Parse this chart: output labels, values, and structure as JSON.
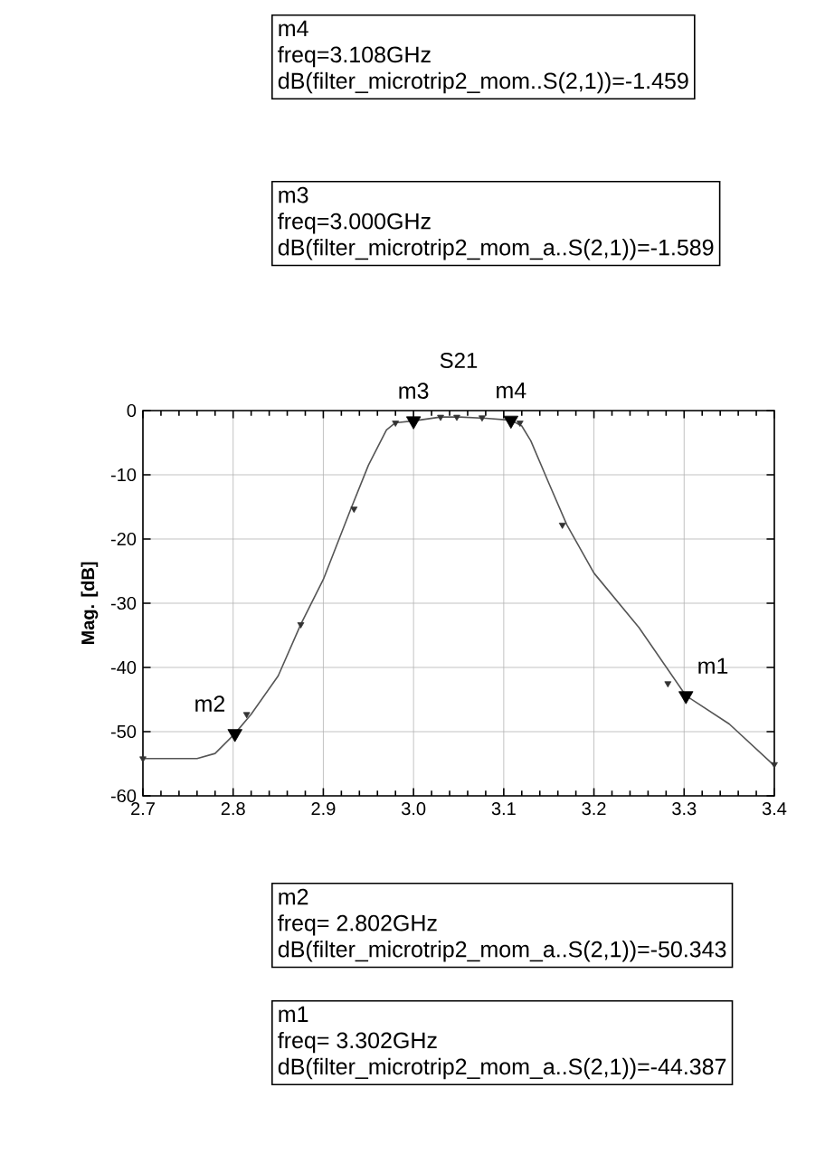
{
  "chart_data": {
    "type": "line",
    "title": "S21",
    "ylabel": "Mag. [dB]",
    "xlim": [
      2.7,
      3.4
    ],
    "ylim": [
      -60,
      0
    ],
    "xticks": [
      2.7,
      2.8,
      2.9,
      {
        "value": 3.0,
        "label": "3.0"
      },
      3.1,
      3.2,
      3.3,
      3.4
    ],
    "yticks": [
      0,
      -10,
      -20,
      -30,
      -40,
      -50,
      -60
    ],
    "grid": true,
    "series": [
      {
        "color": "#555555",
        "marker": "none",
        "x": [
          2.7,
          2.76,
          2.78,
          2.802,
          2.82,
          2.85,
          2.875,
          2.9,
          2.93,
          2.95,
          2.97,
          2.98,
          3.0,
          3.03,
          3.05,
          3.08,
          3.108,
          3.12,
          3.13,
          3.15,
          3.17,
          3.2,
          3.25,
          3.302,
          3.35,
          3.4
        ],
        "values": [
          -54.2,
          -54.2,
          -53.4,
          -50.3,
          -47.3,
          -41.3,
          -33.3,
          -26.3,
          -15.5,
          -8.5,
          -3.0,
          -1.9,
          -1.6,
          -1.0,
          -1.0,
          -1.2,
          -1.5,
          -2.4,
          -4.7,
          -11.3,
          -17.8,
          -25.3,
          -33.8,
          -44.4,
          -48.8,
          -55.3
        ]
      },
      {
        "type": "scatter",
        "color": "#333333",
        "marker": "triangle",
        "x": [
          2.7,
          2.815,
          2.875,
          2.934,
          2.98,
          3.03,
          3.048,
          3.076,
          3.113,
          3.118,
          3.165,
          3.282,
          3.4
        ],
        "values": [
          -54.2,
          -47.3,
          -33.3,
          -15.3,
          -1.9,
          -1.0,
          -1.0,
          -1.1,
          null,
          -1.9,
          -17.8,
          -42.5,
          -55.1
        ]
      },
      {
        "type": "scatter",
        "color": "#000000",
        "marker": "triangle",
        "x": [
          3.108,
          3.0,
          2.802,
          3.302
        ],
        "values": [
          -1.5,
          -1.6,
          -50.3,
          -44.4
        ]
      }
    ],
    "annotations": [
      "m4",
      "freq=3.108GHz",
      "dB(filter_microtrip2_mom..S(2,1))=-1.459",
      "m3",
      "freq=3.000GHz",
      "dB(filter_microtrip2_mom_a..S(2,1))=-1.589",
      "m2",
      "freq= 2.802GHz",
      "dB(filter_microtrip2_mom_a..S(2,1))=-50.343",
      "m1",
      "freq= 3.302GHz",
      "dB(filter_microtrip2_mom_a..S(2,1))=-44.387",
      {
        "text": "m4",
        "x": 3.108,
        "y": -1.5
      },
      {
        "text": "m3",
        "x": 3.0,
        "y": -1.6
      },
      {
        "text": "m2",
        "x": 2.802,
        "y": -50.3
      },
      {
        "text": "m1",
        "x": 3.302,
        "y": -44.4
      }
    ]
  }
}
